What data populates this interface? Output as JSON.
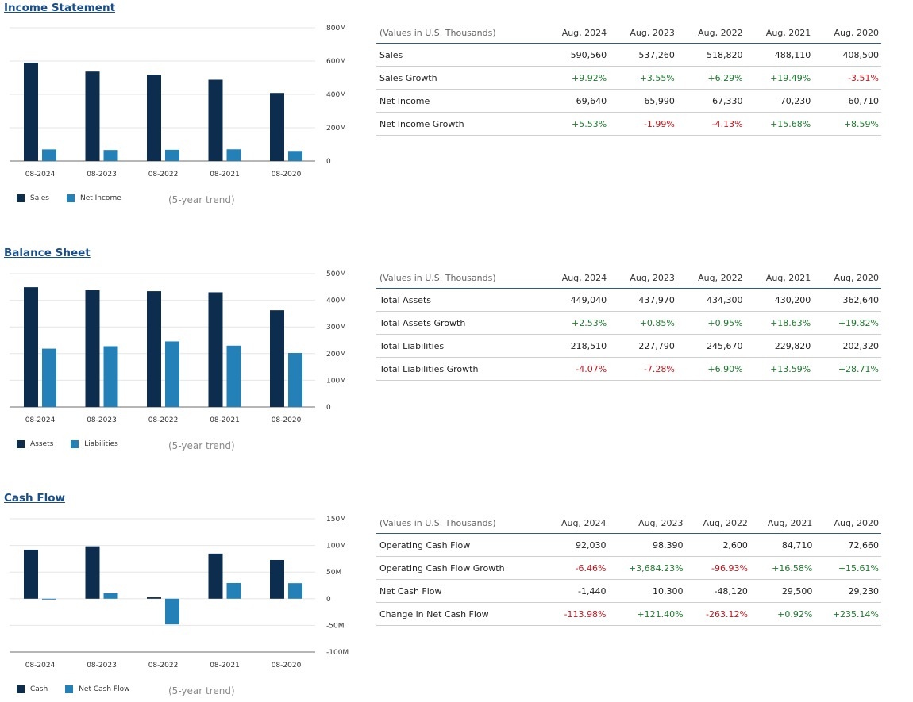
{
  "colors": {
    "primary": "#0d2d4e",
    "secondary": "#2381b8",
    "positive": "#1e7b2e",
    "negative": "#c4161c",
    "link": "#1a4e8a"
  },
  "trend_label": "(5-year trend)",
  "sections": [
    {
      "title": "Income Statement",
      "chart_data": {
        "type": "bar",
        "categories": [
          "08-2024",
          "08-2023",
          "08-2022",
          "08-2021",
          "08-2020"
        ],
        "series": [
          {
            "name": "Sales",
            "values": [
              590560,
              537260,
              518820,
              488110,
              408500
            ]
          },
          {
            "name": "Net Income",
            "values": [
              69640,
              65990,
              67330,
              70230,
              60710
            ]
          }
        ],
        "ylim": [
          0,
          800000
        ],
        "yticks": [
          0,
          200000,
          400000,
          600000,
          800000
        ],
        "ytick_labels": [
          "0",
          "200M",
          "400M",
          "600M",
          "800M"
        ],
        "grid": true,
        "legend": "bottom-left"
      },
      "table": {
        "header": [
          "(Values in U.S. Thousands)",
          "Aug, 2024",
          "Aug, 2023",
          "Aug, 2022",
          "Aug, 2021",
          "Aug, 2020"
        ],
        "rows": [
          [
            "Sales",
            "590,560",
            "537,260",
            "518,820",
            "488,110",
            "408,500"
          ],
          [
            "Sales Growth",
            "+9.92%",
            "+3.55%",
            "+6.29%",
            "+19.49%",
            "-3.51%"
          ],
          [
            "Net Income",
            "69,640",
            "65,990",
            "67,330",
            "70,230",
            "60,710"
          ],
          [
            "Net Income Growth",
            "+5.53%",
            "-1.99%",
            "-4.13%",
            "+15.68%",
            "+8.59%"
          ]
        ]
      }
    },
    {
      "title": "Balance Sheet",
      "chart_data": {
        "type": "bar",
        "categories": [
          "08-2024",
          "08-2023",
          "08-2022",
          "08-2021",
          "08-2020"
        ],
        "series": [
          {
            "name": "Assets",
            "values": [
              449040,
              437970,
              434300,
              430200,
              362640
            ]
          },
          {
            "name": "Liabilities",
            "values": [
              218510,
              227790,
              245670,
              229820,
              202320
            ]
          }
        ],
        "ylim": [
          0,
          500000
        ],
        "yticks": [
          0,
          100000,
          200000,
          300000,
          400000,
          500000
        ],
        "ytick_labels": [
          "0",
          "100M",
          "200M",
          "300M",
          "400M",
          "500M"
        ],
        "grid": true,
        "legend": "bottom-left"
      },
      "table": {
        "header": [
          "(Values in U.S. Thousands)",
          "Aug, 2024",
          "Aug, 2023",
          "Aug, 2022",
          "Aug, 2021",
          "Aug, 2020"
        ],
        "rows": [
          [
            "Total Assets",
            "449,040",
            "437,970",
            "434,300",
            "430,200",
            "362,640"
          ],
          [
            "Total Assets Growth",
            "+2.53%",
            "+0.85%",
            "+0.95%",
            "+18.63%",
            "+19.82%"
          ],
          [
            "Total Liabilities",
            "218,510",
            "227,790",
            "245,670",
            "229,820",
            "202,320"
          ],
          [
            "Total Liabilities Growth",
            "-4.07%",
            "-7.28%",
            "+6.90%",
            "+13.59%",
            "+28.71%"
          ]
        ]
      }
    },
    {
      "title": "Cash Flow",
      "chart_data": {
        "type": "bar",
        "categories": [
          "08-2024",
          "08-2023",
          "08-2022",
          "08-2021",
          "08-2020"
        ],
        "series": [
          {
            "name": "Cash",
            "values": [
              92030,
              98390,
              2600,
              84710,
              72660
            ]
          },
          {
            "name": "Net Cash Flow",
            "values": [
              -1440,
              10300,
              -48120,
              29500,
              29230
            ]
          }
        ],
        "ylim": [
          -100000,
          150000
        ],
        "yticks": [
          -100000,
          -50000,
          0,
          50000,
          100000,
          150000
        ],
        "ytick_labels": [
          "-100M",
          "-50M",
          "0",
          "50M",
          "100M",
          "150M"
        ],
        "grid": true,
        "legend": "bottom-left"
      },
      "table": {
        "header": [
          "(Values in U.S. Thousands)",
          "Aug, 2024",
          "Aug, 2023",
          "Aug, 2022",
          "Aug, 2021",
          "Aug, 2020"
        ],
        "rows": [
          [
            "Operating Cash Flow",
            "92,030",
            "98,390",
            "2,600",
            "84,710",
            "72,660"
          ],
          [
            "Operating Cash Flow Growth",
            "-6.46%",
            "+3,684.23%",
            "-96.93%",
            "+16.58%",
            "+15.61%"
          ],
          [
            "Net Cash Flow",
            "-1,440",
            "10,300",
            "-48,120",
            "29,500",
            "29,230"
          ],
          [
            "Change in Net Cash Flow",
            "-113.98%",
            "+121.40%",
            "-263.12%",
            "+0.92%",
            "+235.14%"
          ]
        ]
      }
    }
  ]
}
